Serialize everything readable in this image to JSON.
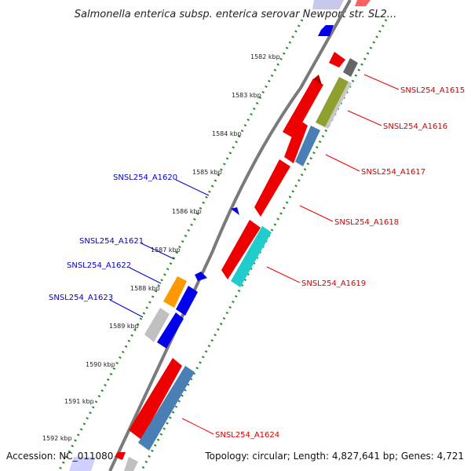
{
  "title": "Salmonella enterica subsp. enterica serovar Newport str. SL2...",
  "footer": {
    "accession": "Accession: NC_011080",
    "summary": "Topology: circular; Length: 4,827,641 bp; Genes: 4,721"
  },
  "colors": {
    "forward_label": "#d00000",
    "reverse_label": "#0000cc",
    "tick": "#2a8a2a",
    "backbone": "#888888"
  },
  "ruler_labels": [
    "1582 kbp",
    "1583 kbp",
    "1584 kbp",
    "1585 kbp",
    "1586 kbp",
    "1587 kbp",
    "1588 kbp",
    "1589 kbp",
    "1590 kbp",
    "1591 kbp",
    "1592 kbp"
  ],
  "gene_labels": [
    {
      "text": "SNSL254_A1615",
      "strand": "forward"
    },
    {
      "text": "SNSL254_A1616",
      "strand": "forward"
    },
    {
      "text": "SNSL254_A1617",
      "strand": "forward"
    },
    {
      "text": "SNSL254_A1618",
      "strand": "forward"
    },
    {
      "text": "SNSL254_A1619",
      "strand": "forward"
    },
    {
      "text": "SNSL254_A1620",
      "strand": "reverse"
    },
    {
      "text": "SNSL254_A1621",
      "strand": "reverse"
    },
    {
      "text": "SNSL254_A1622",
      "strand": "reverse"
    },
    {
      "text": "SNSL254_A1623",
      "strand": "reverse"
    },
    {
      "text": "SNSL254_A1624",
      "strand": "forward"
    }
  ]
}
